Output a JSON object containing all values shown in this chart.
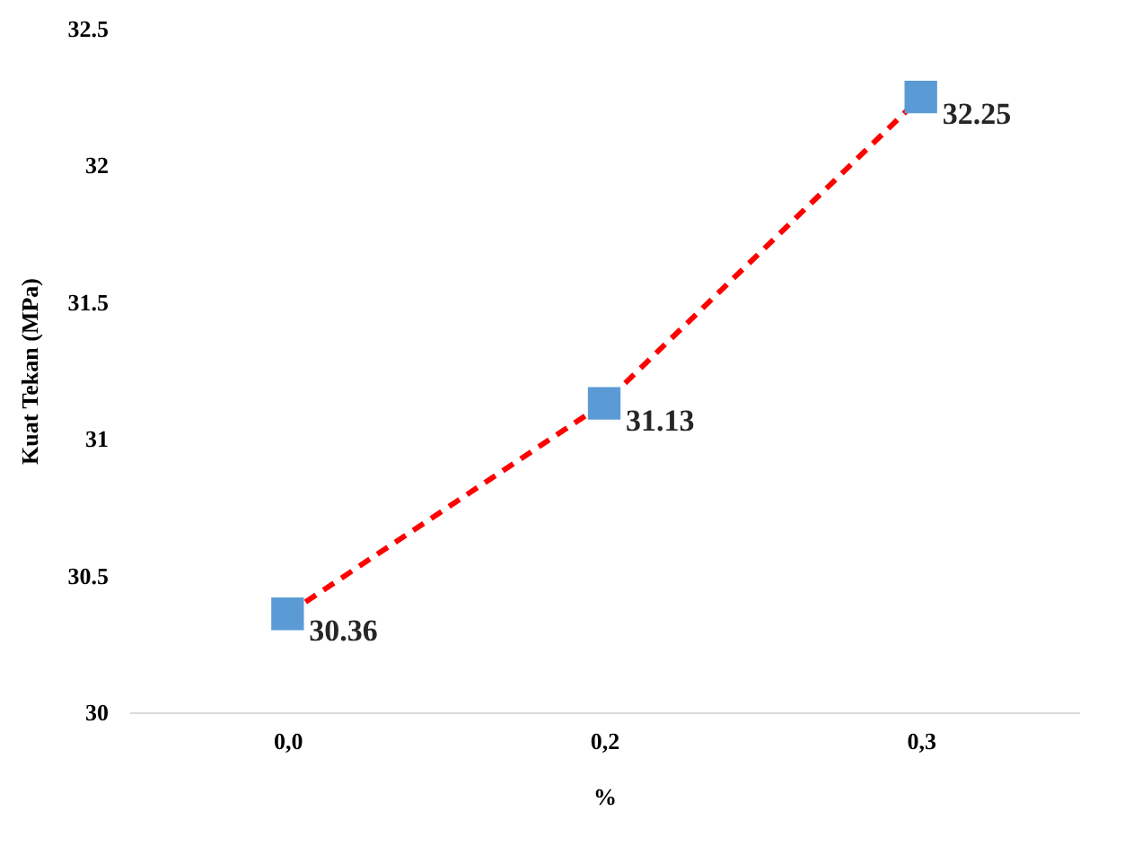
{
  "chart_data": {
    "type": "line",
    "ylabel": "Kuat Tekan (MPa)",
    "xlabel": "%",
    "categories": [
      "0,0",
      "0,2",
      "0,3"
    ],
    "series": [
      {
        "color": "#ff0000",
        "colors": [
          "#5b9bd5",
          "#5b9bd5",
          "#5b9bd5"
        ],
        "values": [
          30.36,
          31.13,
          32.25
        ]
      }
    ],
    "line_style": "dashed",
    "marker": "square",
    "ylim": [
      30,
      32.5
    ],
    "yticks": [
      30,
      30.5,
      31,
      31.5,
      32,
      32.5
    ],
    "grid": false,
    "data_labels": true
  }
}
